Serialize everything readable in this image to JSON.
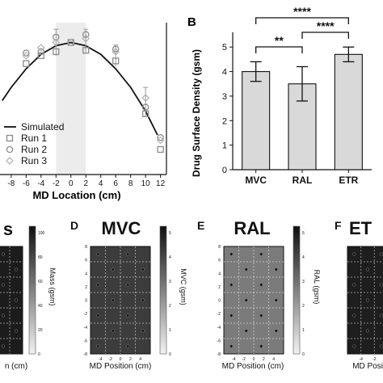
{
  "chart_data": [
    {
      "type": "scatter",
      "xlabel": "MD Location (cm)",
      "ylabel": "",
      "xlim": [
        -9.5,
        12.8
      ],
      "ylim": [
        0.0,
        1.15
      ],
      "x_ticks": [
        -8,
        -6,
        -4,
        -2,
        0,
        2,
        4,
        6,
        8,
        10,
        12
      ],
      "shaded_region": [
        -2,
        2
      ],
      "legend_position": "lower-left",
      "series": [
        {
          "name": "Simulated",
          "kind": "line",
          "x": [
            -9.2,
            -8,
            -6,
            -4,
            -2,
            0,
            2,
            4,
            6,
            8,
            10,
            11.6
          ],
          "y": [
            0.56,
            0.66,
            0.8,
            0.91,
            0.975,
            1.0,
            0.975,
            0.91,
            0.8,
            0.66,
            0.48,
            0.3
          ]
        },
        {
          "name": "Run 1",
          "kind": "square",
          "x": [
            -6,
            -4,
            -2,
            0,
            2,
            6,
            10,
            12
          ],
          "y": [
            0.84,
            0.9,
            0.93,
            1.0,
            0.94,
            0.86,
            0.46,
            0.19
          ]
        },
        {
          "name": "Run 2",
          "kind": "circle",
          "x": [
            -6,
            -4,
            -2,
            0,
            2,
            6,
            10,
            12
          ],
          "y": [
            0.92,
            0.93,
            1.04,
            1.0,
            1.06,
            0.95,
            0.51,
            0.28
          ]
        },
        {
          "name": "Run 3",
          "kind": "diamond",
          "x": [
            -6,
            -4,
            -2,
            0,
            2,
            6,
            10,
            12
          ],
          "y": [
            0.9,
            0.96,
            1.0,
            1.0,
            1.03,
            0.93,
            0.58,
            0.26
          ]
        }
      ],
      "error_bars": [
        {
          "x": -2,
          "low": 0.9,
          "high": 1.1
        },
        {
          "x": 2,
          "low": 0.92,
          "high": 1.1
        },
        {
          "x": 6,
          "low": 0.82,
          "high": 0.98
        },
        {
          "x": 10,
          "low": 0.44,
          "high": 0.66
        }
      ]
    },
    {
      "type": "bar",
      "panel_label": "B",
      "categories": [
        "MVC",
        "RAL",
        "ETR"
      ],
      "values": [
        4.0,
        3.5,
        4.7
      ],
      "errors": [
        0.4,
        0.7,
        0.3
      ],
      "ylabel": "Drug Surface Density (gsm)",
      "ylim": [
        0,
        5.6
      ],
      "y_ticks": [
        0,
        1,
        2,
        3,
        4,
        5
      ],
      "significance": [
        {
          "from": "MVC",
          "to": "RAL",
          "label": "**"
        },
        {
          "from": "RAL",
          "to": "ETR",
          "label": "****"
        },
        {
          "from": "MVC",
          "to": "ETR",
          "label": "****"
        }
      ],
      "bar_color": "#d9d9d9"
    },
    {
      "type": "heatmap",
      "title": "s",
      "colorbar_label": "Mass (gsm)",
      "colorbar_ticks": [
        0,
        20,
        40,
        60,
        80,
        100
      ],
      "x_ticks": [],
      "xlabel": "n (cm)",
      "shade": "#1c1c1c"
    },
    {
      "type": "heatmap",
      "panel_label": "D",
      "title": "MVC",
      "colorbar_label": "MVC (gsm)",
      "colorbar_ticks": [
        0,
        1,
        2,
        3,
        4,
        5
      ],
      "x_ticks": [
        -4,
        -2,
        0,
        2,
        4
      ],
      "y_ticks": [
        -8,
        -6,
        -4,
        -2,
        0,
        2,
        4,
        6,
        8
      ],
      "xlabel": "MD Position (cm)",
      "shade": "#3c3c3c"
    },
    {
      "type": "heatmap",
      "panel_label": "E",
      "title": "RAL",
      "colorbar_label": "RAL (gsm)",
      "colorbar_ticks": [
        0,
        1,
        2,
        3,
        4,
        5
      ],
      "x_ticks": [
        -4,
        -2,
        0,
        2,
        4
      ],
      "y_ticks": [
        -8,
        -6,
        -4,
        -2,
        0,
        2,
        4,
        6,
        8
      ],
      "xlabel": "MD Position (cm)",
      "shade": "#7b7b7b"
    },
    {
      "type": "heatmap",
      "panel_label": "F",
      "title": "ET",
      "colorbar_label": "",
      "colorbar_ticks": [],
      "x_ticks": [
        -4,
        -2
      ],
      "xlabel": "MD Posi",
      "shade": "#1e1e1e"
    }
  ],
  "colors": {
    "ink": "#111111",
    "marker": "#8a8a8a",
    "shade": "#ececec",
    "grid": "#cccccc"
  }
}
